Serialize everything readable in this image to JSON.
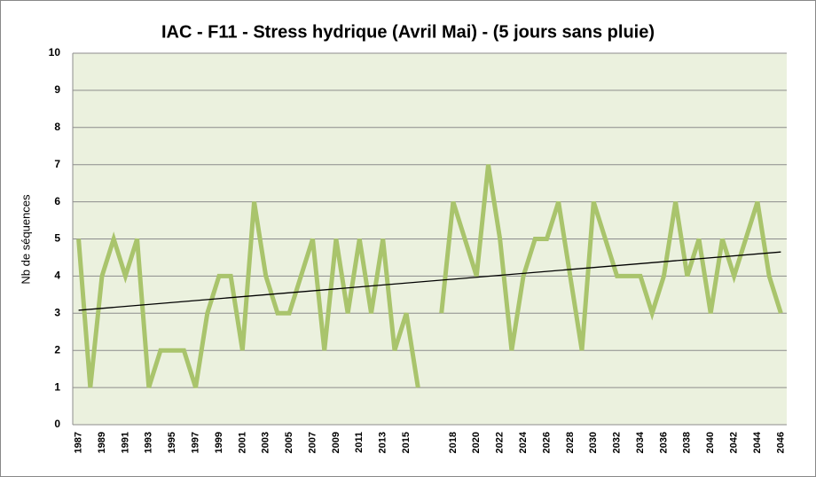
{
  "chart_data": {
    "type": "line",
    "title": "IAC - F11 - Stress hydrique (Avril Mai) - (5 jours sans pluie)",
    "y_label": "Nb de séquences",
    "categories": [
      "1987",
      null,
      "1989",
      null,
      "1991",
      null,
      "1993",
      null,
      "1995",
      null,
      "1997",
      null,
      "1999",
      null,
      "2001",
      null,
      "2003",
      null,
      "2005",
      null,
      "2007",
      null,
      "2009",
      null,
      "2011",
      null,
      "2013",
      null,
      "2015",
      null,
      null,
      null,
      "2018",
      null,
      "2020",
      null,
      "2022",
      null,
      "2024",
      null,
      "2026",
      null,
      "2028",
      null,
      "2030",
      null,
      "2032",
      null,
      "2034",
      null,
      "2036",
      null,
      "2038",
      null,
      "2040",
      null,
      "2042",
      null,
      "2044",
      null,
      "2046"
    ],
    "series": [
      {
        "color": "#a9c46c",
        "values": [
          5,
          1,
          4,
          5,
          4,
          5,
          1,
          2,
          2,
          2,
          1,
          3,
          4,
          4,
          2,
          6,
          4,
          3,
          3,
          4,
          5,
          2,
          5,
          3,
          5,
          3,
          5,
          2,
          3,
          1,
          null,
          3,
          6,
          5,
          4,
          7,
          5,
          2,
          4,
          5,
          5,
          6,
          4,
          2,
          6,
          5,
          4,
          4,
          4,
          3,
          4,
          6,
          4,
          5,
          3,
          5,
          4,
          5,
          6,
          4,
          3
        ]
      }
    ],
    "trendline": {
      "start": 3.08,
      "end": 4.65,
      "color": "#000000"
    },
    "ylim": [
      0,
      10
    ],
    "yticks": [
      0,
      1,
      2,
      3,
      4,
      5,
      6,
      7,
      8,
      9,
      10
    ],
    "grid": true,
    "plot_background": "#ebf1de"
  }
}
